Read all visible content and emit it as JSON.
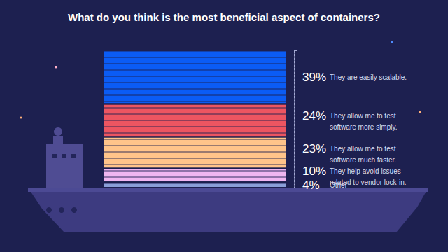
{
  "chart_data": {
    "type": "bar",
    "title": "What do you think is the most beneficial aspect of containers?",
    "categories": [
      null
    ],
    "series": [
      {
        "name": "Other",
        "color": "#8a9fd8",
        "values": [
          4
        ],
        "value_labels": [
          "4%"
        ]
      },
      {
        "name": "They help avoid issues related to vendor lock-in.",
        "color": "#efb6f0",
        "values": [
          10
        ],
        "value_labels": [
          "10%"
        ]
      },
      {
        "name": "They allow me to test software much faster.",
        "color": "#ffc48a",
        "values": [
          23
        ],
        "value_labels": [
          "23%"
        ]
      },
      {
        "name": "They allow me to test software more simply.",
        "color": "#ec5561",
        "values": [
          24
        ],
        "value_labels": [
          "24%"
        ]
      },
      {
        "name": "They are easily scalable.",
        "color": "#0b5cf5",
        "values": [
          39
        ],
        "value_labels": [
          "39%"
        ]
      }
    ],
    "stacked": true,
    "data_labels": true,
    "ylim": [
      0,
      100
    ],
    "yticks": [
      0,
      100
    ],
    "tick_labels": false,
    "grid": false
  }
}
